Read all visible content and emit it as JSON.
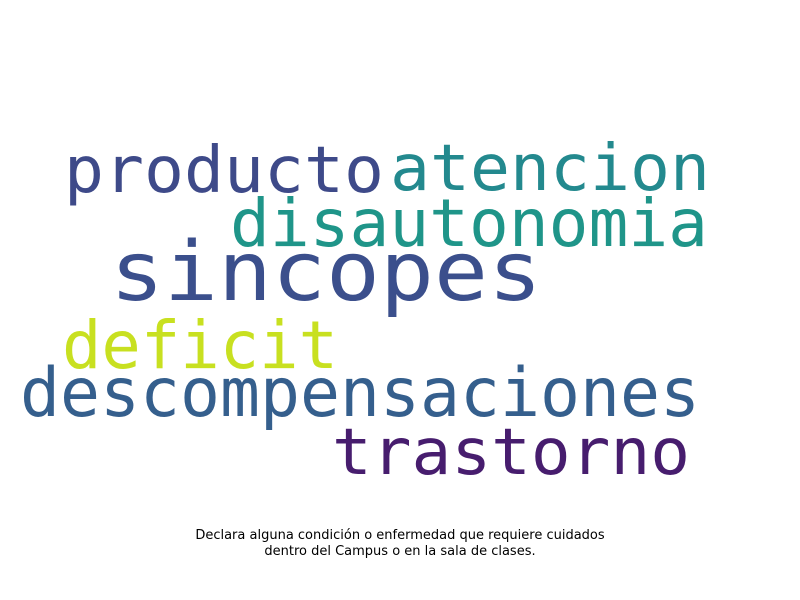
{
  "chart_data": {
    "type": "wordcloud",
    "words": [
      {
        "text": "sincopes",
        "color": "#3b4f8c"
      },
      {
        "text": "producto",
        "color": "#3e4a89"
      },
      {
        "text": "atencion",
        "color": "#23898e"
      },
      {
        "text": "disautonomia",
        "color": "#1f9589"
      },
      {
        "text": "descompensaciones",
        "color": "#355f8d"
      },
      {
        "text": "deficit",
        "color": "#c8e020"
      },
      {
        "text": "trastorno",
        "color": "#471d6e"
      }
    ]
  },
  "caption": {
    "line1": "Declara alguna condición o enfermedad que requiere cuidados",
    "line2": "dentro del Campus o en la sala de clases."
  }
}
